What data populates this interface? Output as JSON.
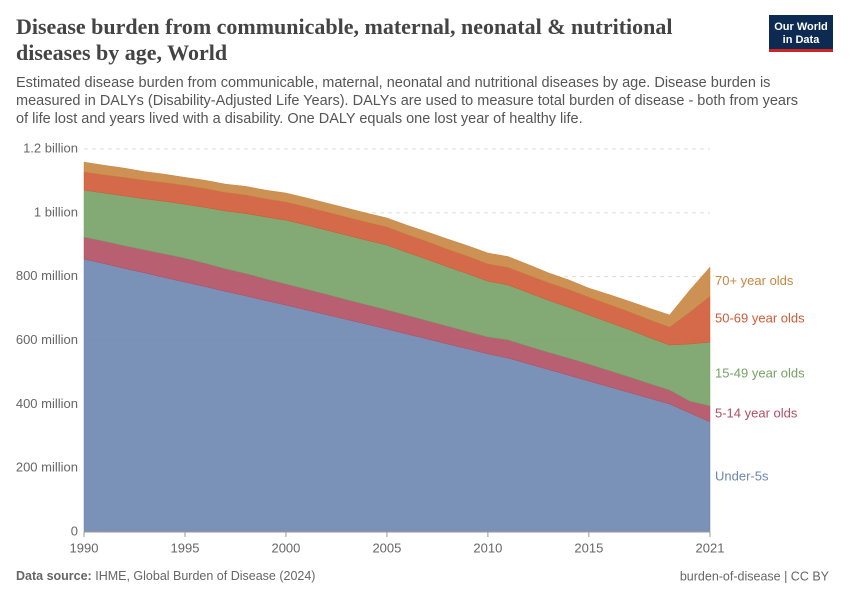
{
  "header": {
    "title_lines": [
      "Disease burden from communicable, maternal, neonatal & nutritional",
      "diseases by age, World"
    ],
    "subtitle_lines": [
      "Estimated disease burden from communicable, maternal, neonatal and nutritional diseases by age. Disease burden is",
      "measured in DALYs (Disability-Adjusted Life Years). DALYs are used to measure total burden of disease - both from years",
      "of life lost and years lived with a disability. One DALY equals one lost year of healthy life."
    ],
    "logo_lines": [
      "Our World",
      "in Data"
    ]
  },
  "chart_data": {
    "type": "stacked-area",
    "x": [
      1990,
      1991,
      1992,
      1993,
      1994,
      1995,
      1996,
      1997,
      1998,
      1999,
      2000,
      2001,
      2002,
      2003,
      2004,
      2005,
      2006,
      2007,
      2008,
      2009,
      2010,
      2011,
      2012,
      2013,
      2014,
      2015,
      2016,
      2017,
      2018,
      2019,
      2020,
      2021
    ],
    "xlim": [
      1990,
      2021
    ],
    "xticks": [
      1990,
      1995,
      2000,
      2005,
      2010,
      2015,
      2021
    ],
    "ylim": [
      0,
      1200000000
    ],
    "yticks": [
      {
        "value": 0,
        "label": "0"
      },
      {
        "value": 200000000,
        "label": "200 million"
      },
      {
        "value": 400000000,
        "label": "400 million"
      },
      {
        "value": 600000000,
        "label": "600 million"
      },
      {
        "value": 800000000,
        "label": "800 million"
      },
      {
        "value": 1000000000,
        "label": "1 billion"
      },
      {
        "value": 1200000000,
        "label": "1.2 billion"
      }
    ],
    "grid": true,
    "series": [
      {
        "name": "Under-5s",
        "color": "#6d86b0",
        "values": [
          855000000,
          841000000,
          826000000,
          812000000,
          797000000,
          783000000,
          769000000,
          754000000,
          740000000,
          725000000,
          711000000,
          696000000,
          681000000,
          666000000,
          651000000,
          636000000,
          620000000,
          605000000,
          589000000,
          574000000,
          558000000,
          545000000,
          527000000,
          509000000,
          491000000,
          473000000,
          455000000,
          437000000,
          419000000,
          401000000,
          373000000,
          345000000
        ]
      },
      {
        "name": "5-14 year olds",
        "color": "#b04f62",
        "values": [
          69000000,
          70000000,
          71000000,
          72000000,
          74000000,
          75000000,
          73000000,
          71000000,
          70000000,
          68000000,
          66000000,
          65000000,
          64000000,
          62000000,
          61000000,
          60000000,
          59000000,
          57000000,
          56000000,
          54000000,
          53000000,
          57000000,
          55000000,
          54000000,
          54000000,
          53000000,
          51000000,
          49000000,
          46000000,
          44000000,
          37000000,
          50000000
        ]
      },
      {
        "name": "15-49 year olds",
        "color": "#76a166",
        "values": [
          147000000,
          151000000,
          156000000,
          160000000,
          165000000,
          169000000,
          175000000,
          181000000,
          188000000,
          194000000,
          200000000,
          201000000,
          201000000,
          202000000,
          202000000,
          203000000,
          197000000,
          192000000,
          186000000,
          181000000,
          175000000,
          172000000,
          168000000,
          163000000,
          159000000,
          154000000,
          151000000,
          148000000,
          144000000,
          141000000,
          179000000,
          200000000
        ]
      },
      {
        "name": "50-69 year olds",
        "color": "#cf5a36",
        "values": [
          57000000,
          57000000,
          58000000,
          58000000,
          59000000,
          59000000,
          59000000,
          58000000,
          58000000,
          57000000,
          57000000,
          57000000,
          57000000,
          57000000,
          57000000,
          57000000,
          56000000,
          56000000,
          55000000,
          55000000,
          54000000,
          55000000,
          55000000,
          55000000,
          56000000,
          56000000,
          56000000,
          56000000,
          56000000,
          56000000,
          100000000,
          144000000
        ]
      },
      {
        "name": "70+ year olds",
        "color": "#c88640",
        "values": [
          31000000,
          30000000,
          29000000,
          27000000,
          26000000,
          25000000,
          26000000,
          26000000,
          27000000,
          27000000,
          28000000,
          28000000,
          28000000,
          28000000,
          28000000,
          28000000,
          29000000,
          30000000,
          32000000,
          33000000,
          34000000,
          34000000,
          33000000,
          31000000,
          30000000,
          28000000,
          31000000,
          33000000,
          36000000,
          38000000,
          69000000,
          91000000
        ]
      }
    ]
  },
  "footer": {
    "source_label": "Data source:",
    "source": "IHME, Global Burden of Disease (2024)",
    "right": "burden-of-disease | CC BY"
  }
}
